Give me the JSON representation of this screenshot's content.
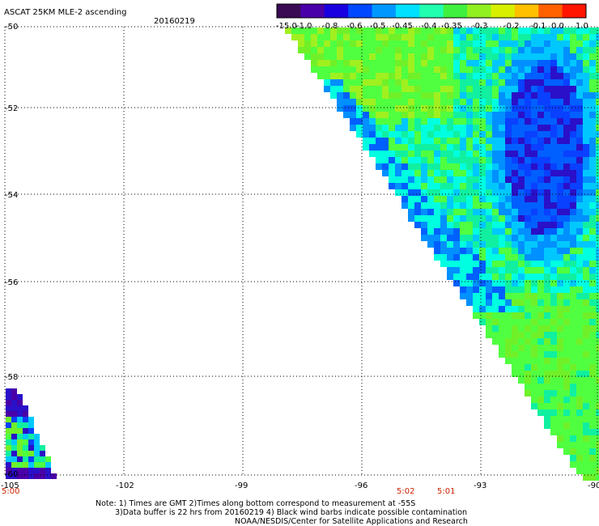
{
  "header": {
    "title": "ASCAT 25KM MLE-2 ascending",
    "date": "20160219"
  },
  "colorbar": {
    "tick_labels": [
      "-15.0",
      "-1.0",
      "-0.8",
      "-0.6",
      "-0.5",
      "-0.45",
      "-0.4",
      "-0.35",
      "-0.3",
      "-0.2",
      "-0.1",
      "0.0",
      "1.0"
    ],
    "colors": [
      "#3a0a55",
      "#4a00a8",
      "#1800e0",
      "#0048ff",
      "#0098ff",
      "#00e0ff",
      "#20ffb0",
      "#40f040",
      "#90f020",
      "#d8f000",
      "#ffc000",
      "#ff6000",
      "#ff1500"
    ]
  },
  "axes": {
    "lon_ticks": [
      "-105",
      "-102",
      "-99",
      "-96",
      "-93",
      "-90"
    ],
    "lat_ticks": [
      "-50",
      "-52",
      "-54",
      "-56",
      "-58",
      "-60"
    ]
  },
  "time_labels": [
    "5:00",
    "5:02",
    "5:01"
  ],
  "notes": {
    "line1": "Note: 1) Times are GMT 2)Times along bottom correspond to measurement at -55S",
    "line2": "3)Data buffer is 22 hrs from 20160219 4) Black wind barbs indicate possible contamination",
    "line3": "NOAA/NESDIS/Center for Satellite Applications and Research"
  }
}
